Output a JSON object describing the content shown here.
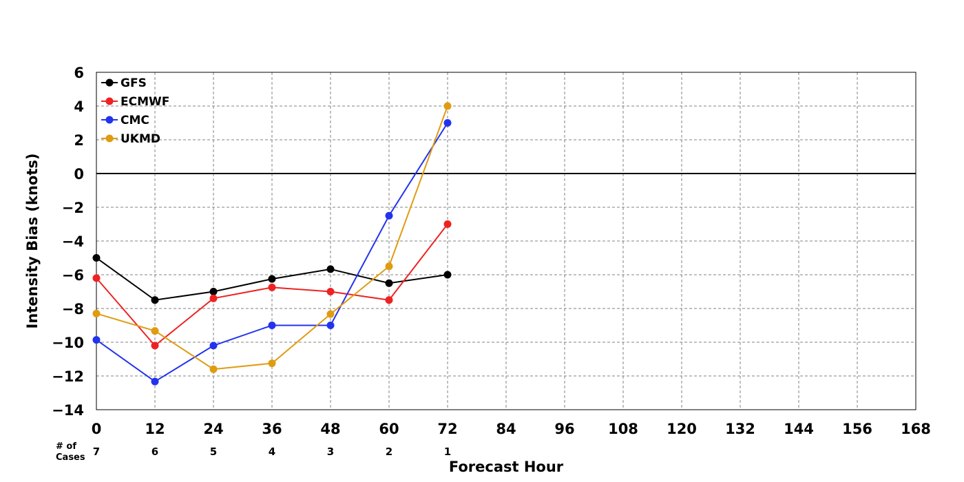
{
  "chart_data": {
    "type": "line",
    "title": "",
    "xlabel": "Forecast Hour",
    "ylabel": "Intensity Bias (knots)",
    "xlim": [
      0,
      168
    ],
    "ylim": [
      -14,
      6
    ],
    "x_ticks": [
      0,
      12,
      24,
      36,
      48,
      60,
      72,
      84,
      96,
      108,
      120,
      132,
      144,
      156,
      168
    ],
    "y_ticks": [
      6,
      4,
      2,
      0,
      -2,
      -4,
      -6,
      -8,
      -10,
      -12,
      -14
    ],
    "y_tick_labels": [
      "6",
      "4",
      "2",
      "0",
      "−2",
      "−4",
      "−6",
      "−8",
      "−10",
      "−12",
      "−14"
    ],
    "grid": true,
    "zero_line": true,
    "legend_position": "top-left",
    "x": [
      0,
      12,
      24,
      36,
      48,
      60,
      72
    ],
    "series": [
      {
        "name": "GFS",
        "color": "#000000",
        "values": [
          -5.0,
          -7.5,
          -7.0,
          -6.25,
          -5.67,
          -6.5,
          -6.0
        ]
      },
      {
        "name": "ECMWF",
        "color": "#ee2222",
        "values": [
          -6.2,
          -10.2,
          -7.4,
          -6.75,
          -7.0,
          -7.5,
          -3.0
        ]
      },
      {
        "name": "CMC",
        "color": "#2233ee",
        "values": [
          -9.86,
          -12.33,
          -10.2,
          -9.0,
          -9.0,
          -2.5,
          3.0
        ]
      },
      {
        "name": "UKMD",
        "color": "#e09b10",
        "values": [
          -8.3,
          -9.33,
          -11.6,
          -11.25,
          -8.33,
          -5.5,
          4.0
        ]
      }
    ],
    "cases": {
      "label_line1": "# of",
      "label_line2": "Cases",
      "x": [
        0,
        12,
        24,
        36,
        48,
        60,
        72
      ],
      "values": [
        "7",
        "6",
        "5",
        "4",
        "3",
        "2",
        "1"
      ]
    }
  }
}
